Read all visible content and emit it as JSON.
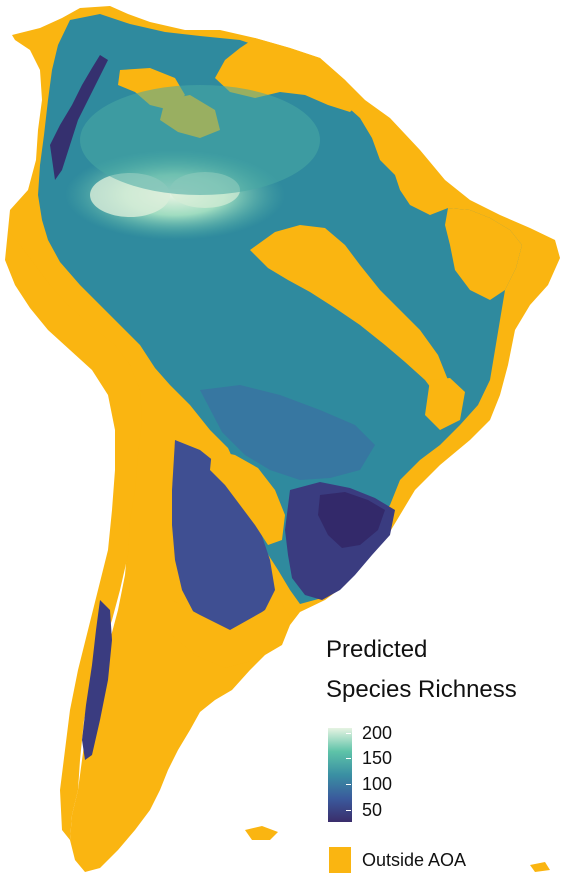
{
  "legend": {
    "title_line1": "Predicted",
    "title_line2": "Species Richness",
    "ticks": [
      "200",
      "150",
      "100",
      "50"
    ],
    "gradient_colors": [
      "#e6f3e2",
      "#5ec3a8",
      "#3a8fa3",
      "#3a5a9c",
      "#3a2d6b"
    ],
    "outside_label": "Outside AOA",
    "outside_color": "#fab511"
  },
  "colors": {
    "outside_aoa": "#fab511",
    "low": "#3a2d6b",
    "mid_low": "#3a6aa0",
    "mid": "#2e8fa1",
    "high": "#5ec3a8",
    "peak": "#e6f3e2"
  }
}
